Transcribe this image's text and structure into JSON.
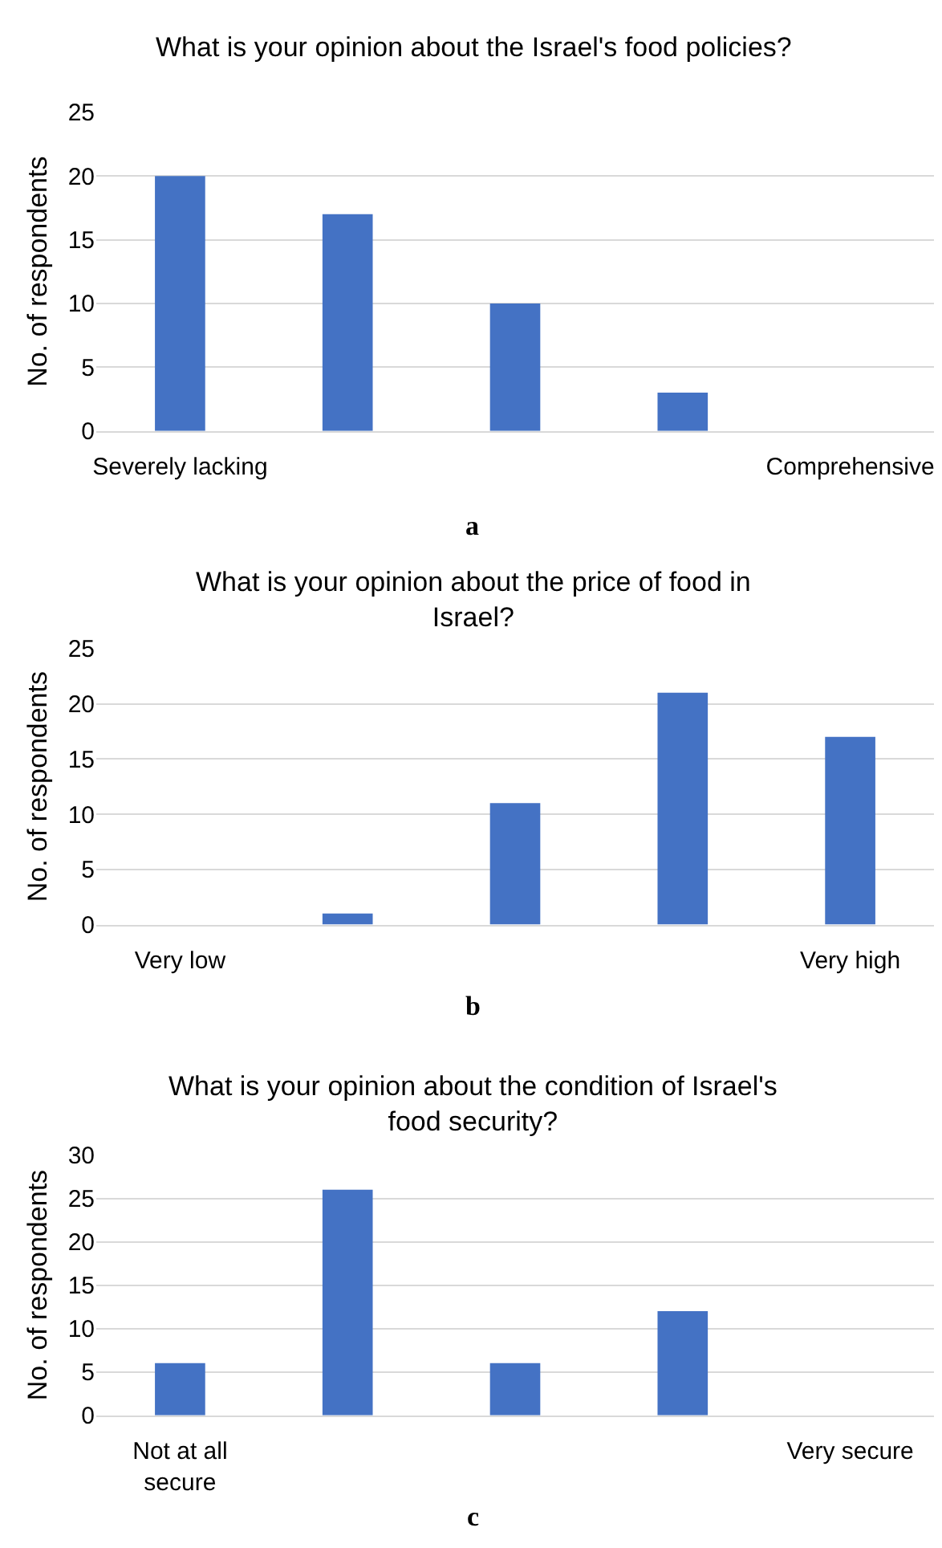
{
  "chart_data": [
    {
      "type": "bar",
      "title": "What is your opinion about the Israel's food policies?",
      "ylabel": "No. of respondents",
      "categories": [
        "Severely lacking",
        null,
        null,
        null,
        "Comprehensive"
      ],
      "values": [
        20,
        17,
        10,
        3,
        0
      ],
      "color": "#4472c4",
      "ylim": [
        0,
        25
      ],
      "yticks": [
        0,
        5,
        10,
        15,
        20,
        25
      ],
      "grid": "y",
      "annotations": [
        "a"
      ]
    },
    {
      "type": "bar",
      "title": "What is your opinion about the price of food in Israel?",
      "ylabel": "No. of respondents",
      "categories": [
        "Very low",
        null,
        null,
        null,
        "Very high"
      ],
      "values": [
        0,
        1,
        11,
        21,
        17
      ],
      "color": "#4472c4",
      "ylim": [
        0,
        25
      ],
      "yticks": [
        0,
        5,
        10,
        15,
        20,
        25
      ],
      "grid": "y",
      "annotations": [
        "b"
      ]
    },
    {
      "type": "bar",
      "title": "What is your opinion about the condition of Israel's food security?",
      "ylabel": "No. of respondents",
      "categories": [
        "Not at all secure",
        null,
        null,
        null,
        "Very secure"
      ],
      "values": [
        6,
        26,
        6,
        12,
        0
      ],
      "color": "#4472c4",
      "ylim": [
        0,
        30
      ],
      "yticks": [
        0,
        5,
        10,
        15,
        20,
        25,
        30
      ],
      "grid": "y",
      "annotations": [
        "c"
      ]
    }
  ]
}
